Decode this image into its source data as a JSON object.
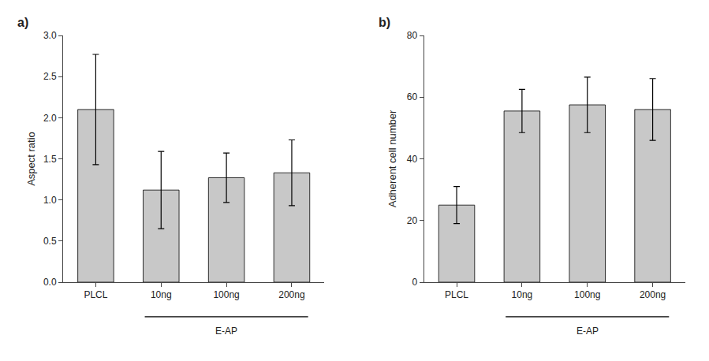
{
  "chart_data": [
    {
      "type": "bar",
      "title": "a)",
      "categories": [
        "PLCL",
        "10ng",
        "100ng",
        "200ng"
      ],
      "values": [
        2.1,
        1.12,
        1.27,
        1.33
      ],
      "errors": [
        0.67,
        0.47,
        0.3,
        0.4
      ],
      "ylabel": "Aspect ratio",
      "ylim": [
        0,
        3.0
      ],
      "yticks": [
        {
          "value": 0,
          "label": "0.0"
        },
        0.5,
        {
          "value": 1,
          "label": "1.0"
        },
        1.5,
        {
          "value": 2,
          "label": "2.0"
        },
        2.5,
        {
          "value": 3,
          "label": "3.0"
        }
      ],
      "color": "#c8c8c8",
      "grid": false,
      "annotations": [
        {
          "text": "E-AP",
          "categories": [
            "10ng",
            "100ng",
            "200ng"
          ]
        }
      ]
    },
    {
      "type": "bar",
      "title": "b)",
      "categories": [
        "PLCL",
        "10ng",
        "100ng",
        "200ng"
      ],
      "values": [
        25.0,
        55.5,
        57.5,
        56.0
      ],
      "errors": [
        6.0,
        7.0,
        9.0,
        10.0
      ],
      "ylabel": "Adherent cell number",
      "ylim": [
        0,
        80
      ],
      "yticks": [
        0,
        20,
        40,
        60,
        80
      ],
      "color": "#c8c8c8",
      "grid": false,
      "annotations": [
        {
          "text": "E-AP",
          "categories": [
            "10ng",
            "100ng",
            "200ng"
          ]
        }
      ]
    }
  ]
}
